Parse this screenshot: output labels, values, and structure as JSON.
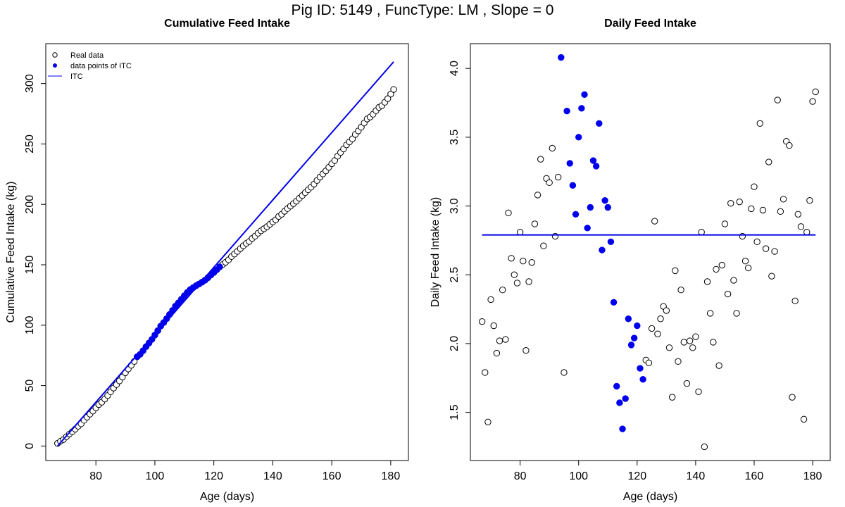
{
  "title": "Pig ID: 5149 , FuncType: LM , Slope = 0",
  "colors": {
    "itc": "#0000ee",
    "axis": "#000000",
    "real_fill": "#ffffff"
  },
  "chart_data": [
    {
      "type": "scatter",
      "title": "Cumulative Feed Intake",
      "xlabel": "Age (days)",
      "ylabel": "Cumulative Feed Intake (kg)",
      "xlim": [
        63,
        186
      ],
      "ylim": [
        -12,
        333
      ],
      "xticks": [
        80,
        100,
        120,
        140,
        160,
        180
      ],
      "yticks": [
        0,
        50,
        100,
        150,
        200,
        250,
        300
      ],
      "grid": false,
      "legend": {
        "position": "top-left",
        "entries": [
          {
            "label": "Real data",
            "marker": "open-circle"
          },
          {
            "label": "data points of ITC",
            "marker": "filled-circle"
          },
          {
            "label": "ITC",
            "marker": "line"
          }
        ]
      },
      "series": [
        {
          "name": "Real data",
          "marker": "open-circle",
          "x": [
            67,
            68,
            69,
            70,
            71,
            72,
            73,
            74,
            75,
            76,
            77,
            78,
            79,
            80,
            81,
            82,
            83,
            84,
            85,
            86,
            87,
            88,
            89,
            90,
            91,
            92,
            93,
            94,
            95,
            96,
            97,
            98,
            99,
            100,
            101,
            102,
            103,
            104,
            105,
            106,
            107,
            108,
            109,
            110,
            111,
            112,
            113,
            114,
            115,
            116,
            117,
            118,
            119,
            120,
            121,
            122,
            123,
            124,
            125,
            126,
            127,
            128,
            129,
            130,
            131,
            132,
            133,
            134,
            135,
            136,
            137,
            138,
            139,
            140,
            141,
            142,
            143,
            144,
            145,
            146,
            147,
            148,
            149,
            150,
            151,
            152,
            153,
            154,
            155,
            156,
            157,
            158,
            159,
            160,
            161,
            162,
            163,
            164,
            165,
            166,
            167,
            168,
            169,
            170,
            171,
            172,
            173,
            174,
            175,
            176,
            177,
            178,
            179,
            180,
            181
          ],
          "y": [
            2.2,
            4.0,
            5.4,
            7.7,
            9.9,
            11.9,
            14.0,
            16.4,
            18.4,
            21.3,
            23.9,
            26.4,
            28.9,
            31.7,
            34.3,
            36.3,
            38.9,
            41.8,
            44.9,
            48.0,
            50.8,
            53.9,
            57.1,
            60.6,
            63.8,
            66.8,
            70.0,
            73.9,
            75.9,
            78.9,
            82.2,
            85.2,
            88.3,
            91.8,
            95.5,
            99.3,
            102.2,
            105.4,
            108.9,
            112.2,
            115.8,
            118.5,
            121.5,
            124.4,
            127.1,
            129.4,
            131.1,
            132.7,
            134.1,
            135.6,
            137.2,
            139.3,
            141.5,
            143.6,
            145.9,
            148.3,
            150.2,
            152.1,
            154.1,
            156.8,
            158.9,
            161.1,
            163.4,
            165.7,
            167.7,
            169.3,
            171.8,
            173.7,
            176.1,
            178.1,
            179.8,
            181.5,
            183.5,
            185.5,
            187.2,
            190.0,
            191.8,
            194.3,
            196.5,
            198.6,
            200.6,
            202.6,
            205.1,
            207.3,
            209.7,
            212.1,
            214.2,
            216.8,
            219.8,
            222.6,
            225.2,
            227.7,
            230.7,
            233.6,
            236.3,
            239.9,
            242.9,
            245.9,
            249.2,
            251.7,
            254.2,
            257.9,
            260.8,
            263.9,
            267.3,
            270.7,
            272.3,
            274.6,
            277.5,
            280.3,
            281.7,
            284.5,
            287.5,
            291.3,
            295.1
          ]
        },
        {
          "name": "data points of ITC",
          "marker": "filled-circle",
          "x": [
            94,
            95,
            96,
            97,
            98,
            99,
            100,
            101,
            102,
            103,
            104,
            105,
            106,
            107,
            108,
            109,
            110,
            111,
            112,
            113,
            114,
            115,
            116,
            117,
            118,
            119,
            120,
            121,
            122
          ],
          "y": [
            73.9,
            75.9,
            78.9,
            82.2,
            85.2,
            88.3,
            91.8,
            95.5,
            99.3,
            102.2,
            105.4,
            108.9,
            112.2,
            115.8,
            118.5,
            121.5,
            124.4,
            127.1,
            129.4,
            131.1,
            132.7,
            134.1,
            135.6,
            137.2,
            139.3,
            141.5,
            143.6,
            145.9,
            148.3
          ]
        },
        {
          "name": "ITC",
          "type": "line",
          "x": [
            67,
            181
          ],
          "y": [
            0,
            318
          ]
        }
      ]
    },
    {
      "type": "scatter",
      "title": "Daily Feed Intake",
      "xlabel": "Age (days)",
      "ylabel": "Daily Feed Intake (kg)",
      "xlim": [
        63,
        186
      ],
      "ylim": [
        1.15,
        4.18
      ],
      "xticks": [
        80,
        100,
        120,
        140,
        160,
        180
      ],
      "yticks": [
        "1.5",
        "2.0",
        "2.5",
        "3.0",
        "3.5",
        "4.0"
      ],
      "grid": false,
      "series": [
        {
          "name": "Real data",
          "marker": "open-circle",
          "x": [
            67,
            68,
            69,
            70,
            71,
            72,
            73,
            74,
            75,
            76,
            77,
            78,
            79,
            80,
            81,
            82,
            83,
            84,
            85,
            86,
            87,
            88,
            89,
            90,
            91,
            92,
            93,
            95,
            123,
            124,
            125,
            126,
            127,
            128,
            129,
            130,
            131,
            132,
            133,
            134,
            135,
            136,
            137,
            138,
            139,
            140,
            141,
            142,
            143,
            144,
            145,
            146,
            147,
            148,
            149,
            150,
            151,
            152,
            153,
            154,
            155,
            156,
            157,
            158,
            159,
            160,
            161,
            162,
            163,
            164,
            165,
            166,
            167,
            168,
            169,
            170,
            171,
            172,
            173,
            174,
            175,
            176,
            177,
            178,
            179,
            180,
            181
          ],
          "y": [
            2.16,
            1.79,
            1.43,
            2.32,
            2.13,
            1.93,
            2.02,
            2.39,
            2.03,
            2.95,
            2.62,
            2.5,
            2.44,
            2.81,
            2.6,
            1.95,
            2.45,
            2.59,
            2.87,
            3.08,
            3.34,
            2.71,
            3.2,
            3.17,
            3.42,
            2.78,
            3.21,
            1.79,
            1.88,
            1.86,
            2.11,
            2.89,
            2.07,
            2.18,
            2.27,
            2.24,
            1.97,
            1.61,
            2.53,
            1.87,
            2.39,
            2.01,
            1.71,
            2.02,
            1.97,
            2.05,
            1.65,
            2.81,
            1.25,
            2.45,
            2.22,
            2.01,
            2.54,
            1.84,
            2.57,
            2.87,
            2.36,
            3.02,
            2.46,
            2.22,
            3.03,
            2.78,
            2.6,
            2.55,
            2.98,
            3.14,
            2.74,
            3.6,
            2.97,
            2.69,
            3.32,
            2.49,
            2.67,
            3.77,
            2.96,
            3.05,
            3.47,
            3.44,
            1.61,
            2.31,
            2.94,
            2.85,
            1.45,
            2.81,
            3.04,
            3.76,
            3.83
          ]
        },
        {
          "name": "data points of ITC",
          "marker": "filled-circle",
          "x": [
            94,
            96,
            97,
            98,
            99,
            100,
            101,
            102,
            103,
            104,
            105,
            106,
            107,
            108,
            109,
            110,
            111,
            112,
            113,
            114,
            115,
            116,
            117,
            118,
            119,
            120,
            121,
            122
          ],
          "y": [
            4.08,
            3.69,
            3.31,
            3.15,
            2.94,
            3.5,
            3.71,
            3.81,
            2.84,
            2.99,
            3.33,
            3.29,
            3.6,
            2.68,
            3.04,
            2.99,
            2.74,
            2.3,
            1.69,
            1.57,
            1.38,
            1.6,
            2.18,
            1.99,
            2.04,
            2.13,
            1.82,
            1.74
          ]
        },
        {
          "name": "ITC",
          "type": "line",
          "x": [
            67,
            181
          ],
          "y": [
            2.79,
            2.79
          ]
        }
      ]
    }
  ]
}
